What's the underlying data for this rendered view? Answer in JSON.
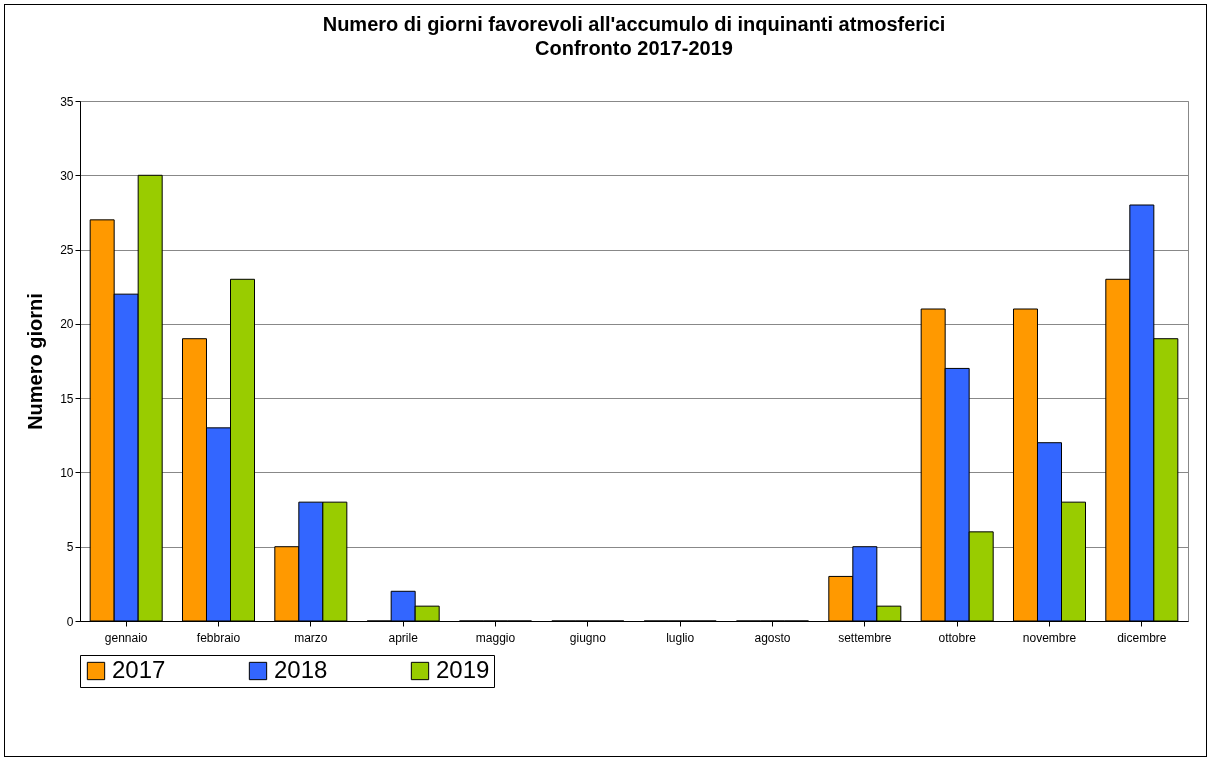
{
  "chart_data": {
    "type": "bar",
    "title": "Numero di giorni favorevoli all'accumulo di inquinanti atmosferici",
    "subtitle": "Confronto  2017-2019",
    "ylabel": "Numero giorni",
    "categories": [
      "gennaio",
      "febbraio",
      "marzo",
      "aprile",
      "maggio",
      "giugno",
      "luglio",
      "agosto",
      "settembre",
      "ottobre",
      "novembre",
      "dicembre"
    ],
    "series": [
      {
        "name": "2017",
        "color": "#ff9900",
        "values": [
          27,
          19,
          5,
          0,
          0,
          0,
          0,
          0,
          3,
          21,
          21,
          23
        ]
      },
      {
        "name": "2018",
        "color": "#3366ff",
        "values": [
          22,
          13,
          8,
          2,
          0,
          0,
          0,
          0,
          5,
          17,
          12,
          28
        ]
      },
      {
        "name": "2019",
        "color": "#99cc00",
        "values": [
          30,
          23,
          8,
          1,
          0,
          0,
          0,
          0,
          1,
          6,
          8,
          19
        ]
      }
    ],
    "ylim": [
      0,
      35
    ],
    "yticks": [
      0,
      5,
      10,
      15,
      20,
      25,
      30,
      35
    ],
    "grid": "y",
    "legend": "bottom"
  }
}
